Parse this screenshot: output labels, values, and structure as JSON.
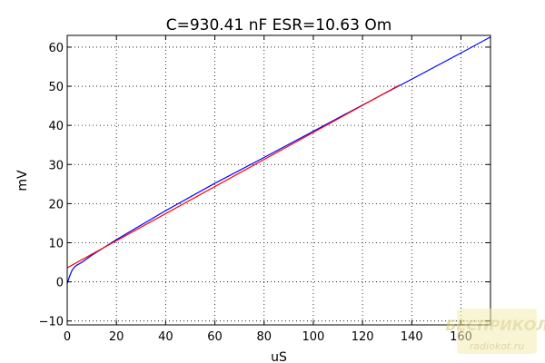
{
  "chart_data": {
    "type": "line",
    "title": "C=930.41 nF ESR=10.63 Om",
    "xlabel": "uS",
    "ylabel": "mV",
    "xlim": [
      0,
      172
    ],
    "ylim": [
      -11,
      63
    ],
    "x_ticks": [
      0,
      20,
      40,
      60,
      80,
      100,
      120,
      140,
      160
    ],
    "y_ticks": [
      -10,
      0,
      10,
      20,
      30,
      40,
      50,
      60
    ],
    "x_tick_labels": [
      "0",
      "20",
      "40",
      "60",
      "80",
      "100",
      "120",
      "140",
      "160"
    ],
    "y_tick_labels": [
      "−10",
      "0",
      "10",
      "20",
      "30",
      "40",
      "50",
      "60"
    ],
    "grid": true,
    "series": [
      {
        "color": "#0000ff",
        "x": [
          0,
          1,
          2,
          3,
          4,
          6,
          10,
          20,
          40,
          60,
          80,
          100,
          120,
          140,
          160,
          172
        ],
        "y": [
          -0.5,
          1.5,
          3.0,
          3.8,
          4.3,
          5.0,
          6.8,
          10.8,
          18.2,
          25.2,
          31.8,
          38.5,
          45.2,
          51.8,
          58.5,
          62.6
        ]
      },
      {
        "color": "#ff0000",
        "x": [
          0,
          135
        ],
        "y": [
          3.6,
          50.3
        ]
      }
    ]
  },
  "watermark": {
    "logo_text": "БЕСПРИКОЛ",
    "site_text": "radiokot.ru"
  }
}
